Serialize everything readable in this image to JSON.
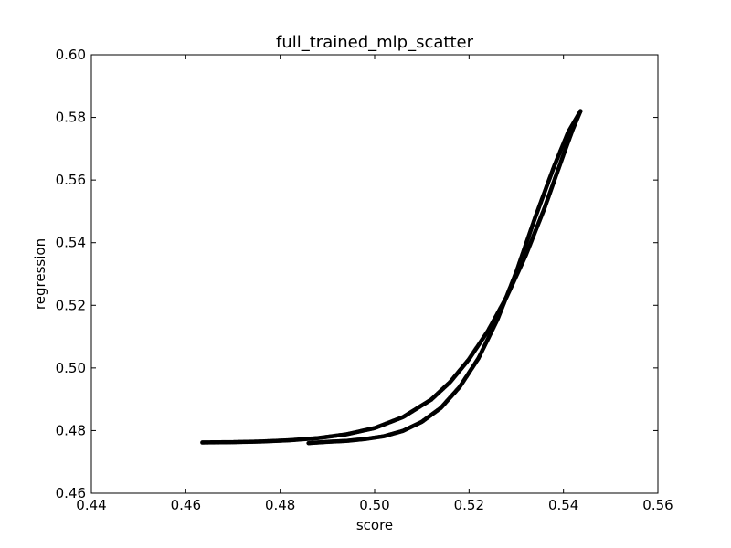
{
  "chart_data": {
    "type": "scatter",
    "title": "full_trained_mlp_scatter",
    "xlabel": "score",
    "ylabel": "regression",
    "xlim": [
      0.44,
      0.56
    ],
    "ylim": [
      0.46,
      0.6
    ],
    "xticks": [
      0.44,
      0.46,
      0.48,
      0.5,
      0.52,
      0.54,
      0.56
    ],
    "yticks": [
      0.46,
      0.48,
      0.5,
      0.52,
      0.54,
      0.56,
      0.58,
      0.6
    ],
    "xtick_labels": [
      "0.44",
      "0.46",
      "0.48",
      "0.50",
      "0.52",
      "0.54",
      "0.56"
    ],
    "ytick_labels": [
      "0.46",
      "0.48",
      "0.50",
      "0.52",
      "0.54",
      "0.56",
      "0.58",
      "0.60"
    ],
    "grid": false,
    "marker_color": "#000000",
    "series": [
      {
        "x": [
          0.4635,
          0.47,
          0.476,
          0.482,
          0.488,
          0.494,
          0.5,
          0.506,
          0.512,
          0.516,
          0.52,
          0.524,
          0.528,
          0.532,
          0.536,
          0.54,
          0.542,
          0.5436
        ],
        "y": [
          0.4762,
          0.4763,
          0.4765,
          0.4769,
          0.4776,
          0.4788,
          0.4808,
          0.4843,
          0.4899,
          0.4955,
          0.5028,
          0.5118,
          0.5228,
          0.5359,
          0.5511,
          0.5681,
          0.5763,
          0.582
        ]
      },
      {
        "x": [
          0.486,
          0.49,
          0.494,
          0.498,
          0.502,
          0.506,
          0.51,
          0.514,
          0.518,
          0.522,
          0.526,
          0.53,
          0.534,
          0.538,
          0.541,
          0.5436
        ],
        "y": [
          0.476,
          0.4764,
          0.4767,
          0.4773,
          0.4782,
          0.4799,
          0.4828,
          0.4872,
          0.4939,
          0.5031,
          0.5154,
          0.5306,
          0.548,
          0.5643,
          0.5753,
          0.582
        ]
      }
    ]
  }
}
